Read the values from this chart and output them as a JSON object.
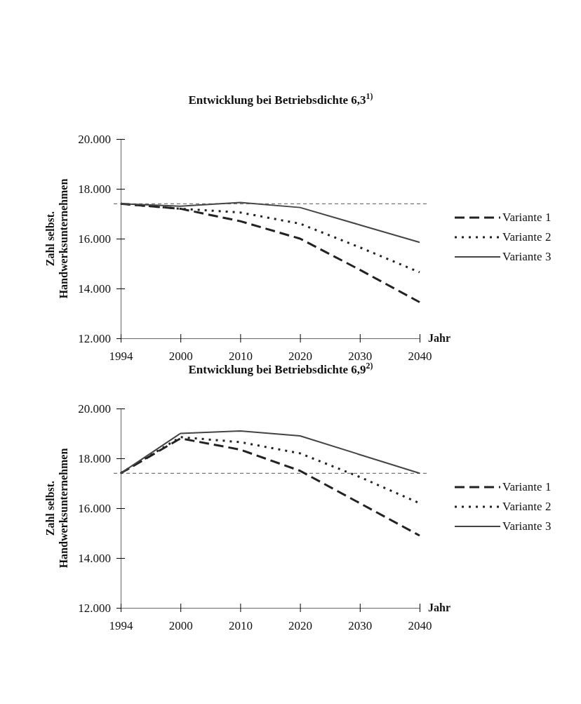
{
  "chart_data": [
    {
      "type": "line",
      "title": "Entwicklung bei Betriebsdichte 6,3$^{1)}$",
      "ylabel": "Zahl selbst.\nHandwerksunternehmen",
      "xlabel": "Jahr",
      "categories": [
        "1994",
        "2000",
        "2010",
        "2020",
        "2030",
        "2040"
      ],
      "ylim": [
        12000,
        20000
      ],
      "yticks": [
        {
          "value": 12000,
          "label": "12.000"
        },
        {
          "value": 14000,
          "label": "14.000"
        },
        {
          "value": 16000,
          "label": "16.000"
        },
        {
          "value": 18000,
          "label": "18.000"
        },
        {
          "value": 20000,
          "label": "20.000"
        }
      ],
      "grid": false,
      "legend": "right",
      "ref_lines": [
        {
          "axis": "y",
          "value": 17400,
          "color": "#555555",
          "line_style": "dashed"
        }
      ],
      "series": [
        {
          "name": "Variante 1",
          "color": "#222222",
          "line_style": "dashed",
          "values": [
            17400,
            17200,
            16700,
            16000,
            14750,
            13450
          ]
        },
        {
          "name": "Variante 2",
          "color": "#222222",
          "line_style": "dotted",
          "values": [
            17400,
            17200,
            17050,
            16600,
            15650,
            14650
          ]
        },
        {
          "name": "Variante 3",
          "color": "#444444",
          "line_style": "solid",
          "values": [
            17400,
            17300,
            17450,
            17250,
            16550,
            15850
          ]
        }
      ]
    },
    {
      "type": "line",
      "title": "Entwicklung bei Betriebsdichte 6,9$^{2)}$",
      "ylabel": "Zahl selbst.\nHandwerksunternehmen",
      "xlabel": "Jahr",
      "categories": [
        "1994",
        "2000",
        "2010",
        "2020",
        "2030",
        "2040"
      ],
      "ylim": [
        12000,
        20000
      ],
      "yticks": [
        {
          "value": 12000,
          "label": "12.000"
        },
        {
          "value": 14000,
          "label": "14.000"
        },
        {
          "value": 16000,
          "label": "16.000"
        },
        {
          "value": 18000,
          "label": "18.000"
        },
        {
          "value": 20000,
          "label": "20.000"
        }
      ],
      "grid": false,
      "legend": "right",
      "ref_lines": [
        {
          "axis": "y",
          "value": 17400,
          "color": "#555555",
          "line_style": "dashed"
        }
      ],
      "series": [
        {
          "name": "Variante 1",
          "color": "#222222",
          "line_style": "dashed",
          "values": [
            17400,
            18800,
            18350,
            17500,
            16200,
            14900
          ]
        },
        {
          "name": "Variante 2",
          "color": "#222222",
          "line_style": "dotted",
          "values": [
            17400,
            18850,
            18650,
            18200,
            17250,
            16200
          ]
        },
        {
          "name": "Variante 3",
          "color": "#444444",
          "line_style": "solid",
          "values": [
            17400,
            19000,
            19100,
            18900,
            18150,
            17400
          ]
        }
      ]
    }
  ]
}
